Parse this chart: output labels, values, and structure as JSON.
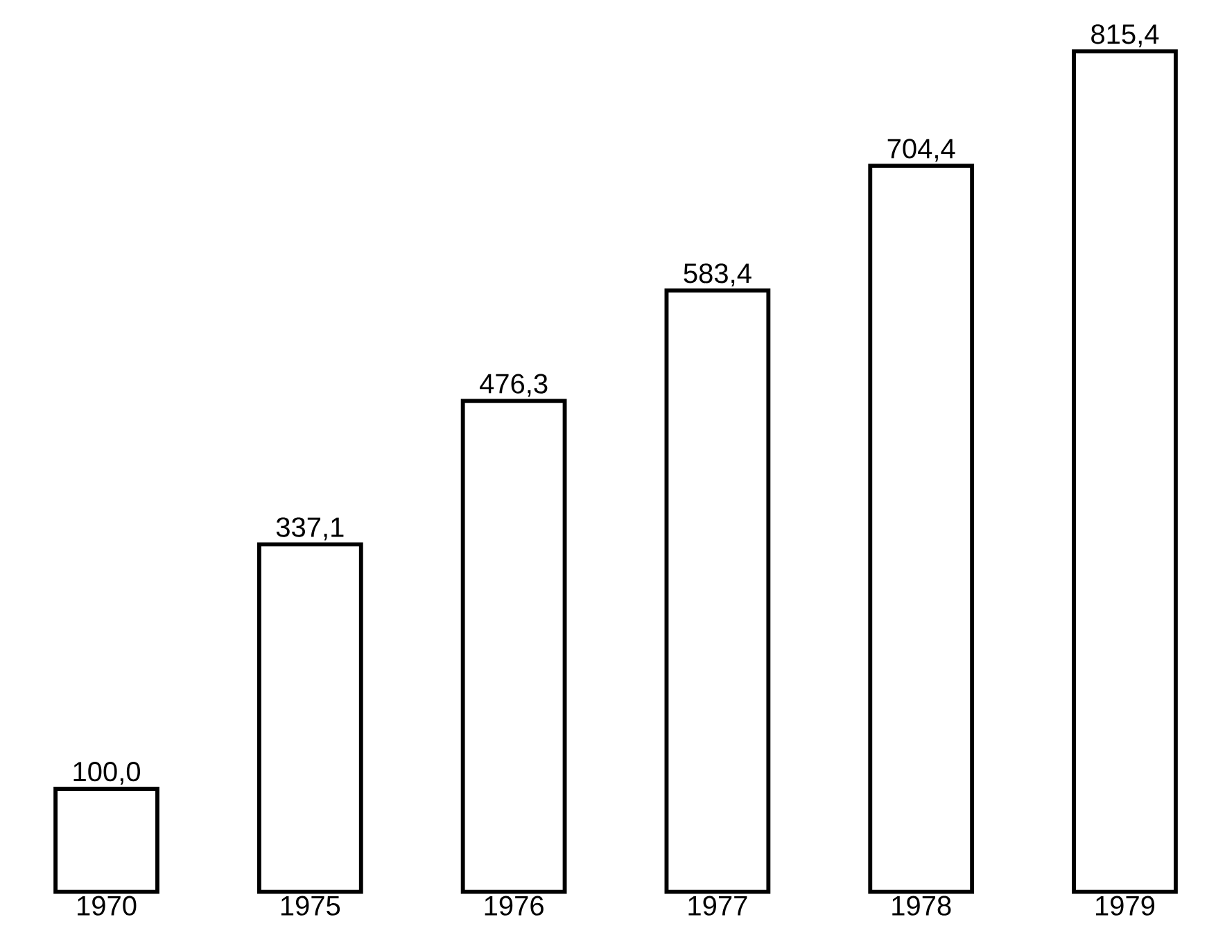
{
  "chart_data": {
    "type": "bar",
    "categories": [
      "1970",
      "1975",
      "1976",
      "1977",
      "1978",
      "1979"
    ],
    "values": [
      100.0,
      337.1,
      476.3,
      583.4,
      704.4,
      815.4
    ],
    "value_labels": [
      "100,0",
      "337,1",
      "476,3",
      "583,4",
      "704,4",
      "815,4"
    ],
    "color": "#000000"
  }
}
